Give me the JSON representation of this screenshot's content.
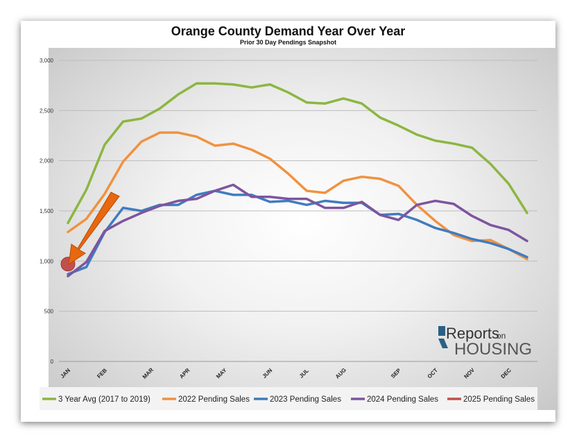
{
  "chart_data": {
    "type": "line",
    "title": "Orange County Demand Year Over Year",
    "subtitle": "Prior 30 Day Pendings Snapshot",
    "ylim": [
      0,
      3000
    ],
    "yticks": [
      0,
      500,
      1000,
      1500,
      2000,
      2500,
      3000
    ],
    "ytick_labels": [
      "0",
      "500",
      "1,000",
      "1,500",
      "2,000",
      "2,500",
      "3,000"
    ],
    "x_labels": [
      {
        "label": "JAN",
        "week": 0
      },
      {
        "label": "FEB",
        "week": 4
      },
      {
        "label": "MAR",
        "week": 9
      },
      {
        "label": "APR",
        "week": 13
      },
      {
        "label": "MAY",
        "week": 17
      },
      {
        "label": "JUN",
        "week": 22
      },
      {
        "label": "JUL",
        "week": 26
      },
      {
        "label": "AUG",
        "week": 30
      },
      {
        "label": "SEP",
        "week": 36
      },
      {
        "label": "OCT",
        "week": 40
      },
      {
        "label": "NOV",
        "week": 44
      },
      {
        "label": "DEC",
        "week": 48
      }
    ],
    "x_range": [
      0,
      50
    ],
    "grid": true,
    "legend_position": "bottom",
    "series": [
      {
        "name": "3 Year Avg (2017 to 2019)",
        "color": "#8cb641",
        "x": [
          0,
          2,
          4,
          6,
          8,
          10,
          12,
          14,
          16,
          18,
          20,
          22,
          24,
          26,
          28,
          30,
          32,
          34,
          36,
          38,
          40,
          42,
          44,
          46,
          48,
          50
        ],
        "values": [
          1380,
          1710,
          2160,
          2390,
          2420,
          2520,
          2660,
          2770,
          2770,
          2760,
          2730,
          2760,
          2680,
          2580,
          2570,
          2620,
          2570,
          2430,
          2350,
          2260,
          2200,
          2170,
          2130,
          1970,
          1770,
          1480
        ]
      },
      {
        "name": "2022 Pending Sales",
        "color": "#f0923f",
        "x": [
          0,
          2,
          4,
          6,
          8,
          10,
          12,
          14,
          16,
          18,
          20,
          22,
          24,
          26,
          28,
          30,
          32,
          34,
          36,
          38,
          40,
          42,
          44,
          46,
          48,
          50
        ],
        "values": [
          1290,
          1420,
          1670,
          1990,
          2190,
          2280,
          2280,
          2240,
          2150,
          2170,
          2110,
          2020,
          1870,
          1700,
          1680,
          1800,
          1840,
          1820,
          1750,
          1560,
          1400,
          1260,
          1200,
          1210,
          1120,
          1020
        ]
      },
      {
        "name": "2023 Pending Sales",
        "color": "#3f7cc0",
        "x": [
          0,
          2,
          4,
          6,
          8,
          10,
          12,
          14,
          16,
          18,
          20,
          22,
          24,
          26,
          28,
          30,
          32,
          34,
          36,
          38,
          40,
          42,
          44,
          46,
          48,
          50
        ],
        "values": [
          870,
          940,
          1290,
          1530,
          1500,
          1560,
          1560,
          1660,
          1700,
          1660,
          1660,
          1590,
          1600,
          1560,
          1600,
          1580,
          1580,
          1460,
          1470,
          1410,
          1330,
          1280,
          1220,
          1180,
          1120,
          1040
        ]
      },
      {
        "name": "2024 Pending Sales",
        "color": "#7d559f",
        "x": [
          0,
          2,
          4,
          6,
          8,
          10,
          12,
          14,
          16,
          18,
          20,
          22,
          24,
          26,
          28,
          30,
          32,
          34,
          36,
          38,
          40,
          42,
          44,
          46,
          48,
          50
        ],
        "values": [
          850,
          990,
          1300,
          1400,
          1480,
          1550,
          1600,
          1620,
          1700,
          1760,
          1640,
          1640,
          1620,
          1620,
          1530,
          1530,
          1590,
          1460,
          1410,
          1560,
          1600,
          1570,
          1450,
          1360,
          1310,
          1200
        ]
      },
      {
        "name": "2025 Pending Sales",
        "color": "#c0504d",
        "x": [
          0
        ],
        "values": [
          970
        ]
      }
    ]
  },
  "logo": {
    "line1": "Reports",
    "on": "on",
    "line2": "HOUSING"
  },
  "colors": {
    "arrow": "#e8670f",
    "marker": "#c0504d"
  }
}
